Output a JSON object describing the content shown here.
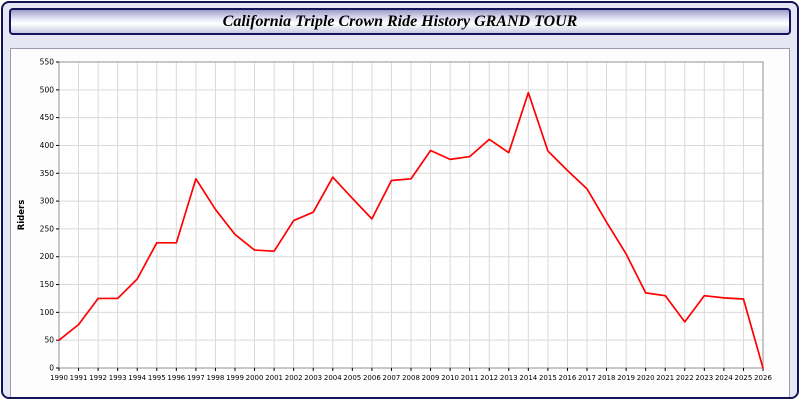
{
  "title_bar": {
    "title": "California Triple Crown Ride History GRAND TOUR"
  },
  "chart_data": {
    "type": "line",
    "title": "California Triple Crown Ride History GRAND TOUR",
    "xlabel": "",
    "ylabel": "Riders",
    "x": [
      1990,
      1991,
      1992,
      1993,
      1994,
      1995,
      1996,
      1997,
      1998,
      1999,
      2000,
      2001,
      2002,
      2003,
      2004,
      2005,
      2006,
      2007,
      2008,
      2009,
      2010,
      2011,
      2012,
      2013,
      2014,
      2015,
      2016,
      2017,
      2018,
      2019,
      2020,
      2021,
      2022,
      2023,
      2024,
      2025,
      2026
    ],
    "series": [
      {
        "name": "Riders",
        "color": "#ff0000",
        "values": [
          50,
          78,
          125,
          125,
          160,
          225,
          225,
          340,
          285,
          240,
          212,
          210,
          265,
          280,
          343,
          305,
          268,
          337,
          340,
          391,
          375,
          380,
          411,
          387,
          495,
          390,
          355,
          322,
          262,
          205,
          135,
          130,
          83,
          130,
          126,
          124,
          0
        ]
      }
    ],
    "ylim": [
      0,
      550
    ],
    "ytick_step": 50,
    "grid": true,
    "legend_position": "none",
    "colors": {
      "line": "#ff0000",
      "grid": "#d9d9d9",
      "plot_background": "#ffffff",
      "plot_border": "#8f8f9c",
      "axis_text": "#000000"
    }
  }
}
